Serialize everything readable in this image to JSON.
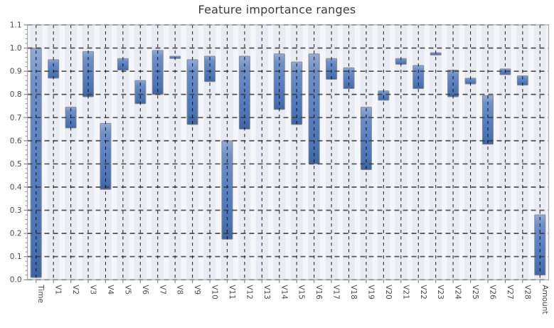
{
  "chart_data": {
    "type": "bar",
    "subtype": "vertical-range-bars",
    "title": "Feature importance ranges",
    "xlabel": "",
    "ylabel": "",
    "ylim": [
      0.0,
      1.1
    ],
    "ytick_labels": [
      "0.0",
      "0.1",
      "0.2",
      "0.3",
      "0.4",
      "0.5",
      "0.6",
      "0.7",
      "0.8",
      "0.9",
      "1.0",
      "1.1"
    ],
    "y_minor_tick_step": 0.02,
    "grid": "both-axes, black dashed, drawn over bars",
    "legend": "none",
    "categories": [
      "Time",
      "V1",
      "V2",
      "V3",
      "V4",
      "V5",
      "V6",
      "V7",
      "V8",
      "V9",
      "V10",
      "V11",
      "V12",
      "V13",
      "V14",
      "V15",
      "V16",
      "V17",
      "V18",
      "V19",
      "V20",
      "V21",
      "V22",
      "V23",
      "V24",
      "V25",
      "V26",
      "V27",
      "V28",
      "Amount"
    ],
    "ranges": [
      {
        "feature": "Time",
        "min": 0.01,
        "max": 1.0
      },
      {
        "feature": "V1",
        "min": 0.87,
        "max": 0.95
      },
      {
        "feature": "V2",
        "min": 0.655,
        "max": 0.745
      },
      {
        "feature": "V3",
        "min": 0.79,
        "max": 0.985
      },
      {
        "feature": "V4",
        "min": 0.39,
        "max": 0.675
      },
      {
        "feature": "V5",
        "min": 0.905,
        "max": 0.955
      },
      {
        "feature": "V6",
        "min": 0.76,
        "max": 0.86
      },
      {
        "feature": "V7",
        "min": 0.8,
        "max": 0.99
      },
      {
        "feature": "V8",
        "min": 0.955,
        "max": 0.965
      },
      {
        "feature": "V9",
        "min": 0.67,
        "max": 0.95
      },
      {
        "feature": "V10",
        "min": 0.855,
        "max": 0.965
      },
      {
        "feature": "V11",
        "min": 0.175,
        "max": 0.6
      },
      {
        "feature": "V12",
        "min": 0.65,
        "max": 0.965
      },
      {
        "feature": "V13",
        "min": null,
        "max": null
      },
      {
        "feature": "V14",
        "min": 0.735,
        "max": 0.975
      },
      {
        "feature": "V15",
        "min": 0.67,
        "max": 0.94
      },
      {
        "feature": "V16",
        "min": 0.5,
        "max": 0.975
      },
      {
        "feature": "V17",
        "min": 0.865,
        "max": 0.955
      },
      {
        "feature": "V18",
        "min": 0.825,
        "max": 0.915
      },
      {
        "feature": "V19",
        "min": 0.475,
        "max": 0.745
      },
      {
        "feature": "V20",
        "min": 0.775,
        "max": 0.815
      },
      {
        "feature": "V21",
        "min": 0.93,
        "max": 0.955
      },
      {
        "feature": "V22",
        "min": 0.825,
        "max": 0.925
      },
      {
        "feature": "V23",
        "min": 0.97,
        "max": 0.98
      },
      {
        "feature": "V24",
        "min": 0.79,
        "max": 0.905
      },
      {
        "feature": "V25",
        "min": 0.845,
        "max": 0.87
      },
      {
        "feature": "V26",
        "min": 0.585,
        "max": 0.795
      },
      {
        "feature": "V27",
        "min": 0.885,
        "max": 0.91
      },
      {
        "feature": "V28",
        "min": 0.84,
        "max": 0.88
      },
      {
        "feature": "Amount",
        "min": 0.02,
        "max": 0.28
      }
    ],
    "colors": {
      "bar_gradient_top": "#93acd6",
      "bar_gradient_upper": "#6f90c8",
      "bar_gradient_mid": "#5981c1",
      "bar_gradient_lower": "#4a73b4",
      "bar_gradient_bottom": "#3d64a2",
      "bar_border": "#878b94",
      "plot_background": "#f5f6f9",
      "column_stripe": "#e8ebf2",
      "h_gridline": "#3f3f3f",
      "v_gridline": "#000000",
      "spine": "#a9adb5",
      "tick": "#888888",
      "tick_label": "#4a4a4a",
      "title_color": "#3c3c3c"
    }
  }
}
